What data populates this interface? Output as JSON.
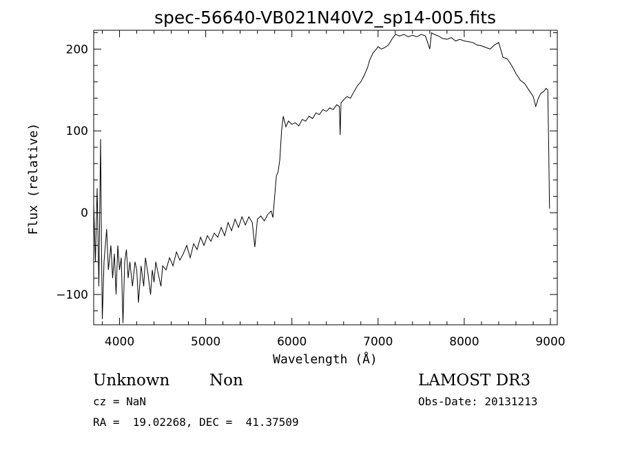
{
  "chart_data": {
    "type": "line",
    "title": "spec-56640-VB021N40V2_sp14-005.fits",
    "xlabel": "Wavelength (Å)",
    "ylabel": "Flux (relative)",
    "xlim": [
      3700,
      9080
    ],
    "ylim": [
      -137,
      223
    ],
    "x_ticks": [
      4000,
      5000,
      6000,
      7000,
      8000,
      9000
    ],
    "y_ticks": [
      -100,
      0,
      100,
      200
    ],
    "grid": false,
    "series": [
      {
        "points": [
          [
            3700,
            10
          ],
          [
            3720,
            -60
          ],
          [
            3740,
            30
          ],
          [
            3760,
            -90
          ],
          [
            3780,
            90
          ],
          [
            3790,
            -40
          ],
          [
            3800,
            -130
          ],
          [
            3820,
            -60
          ],
          [
            3850,
            -20
          ],
          [
            3870,
            -70
          ],
          [
            3900,
            -40
          ],
          [
            3920,
            -80
          ],
          [
            3940,
            -50
          ],
          [
            3960,
            -100
          ],
          [
            3980,
            -40
          ],
          [
            4000,
            -70
          ],
          [
            4020,
            -55
          ],
          [
            4040,
            -135
          ],
          [
            4060,
            -60
          ],
          [
            4080,
            -45
          ],
          [
            4100,
            -80
          ],
          [
            4120,
            -60
          ],
          [
            4150,
            -90
          ],
          [
            4180,
            -60
          ],
          [
            4200,
            -70
          ],
          [
            4220,
            -110
          ],
          [
            4250,
            -65
          ],
          [
            4280,
            -90
          ],
          [
            4300,
            -55
          ],
          [
            4330,
            -75
          ],
          [
            4360,
            -100
          ],
          [
            4380,
            -70
          ],
          [
            4400,
            -85
          ],
          [
            4420,
            -60
          ],
          [
            4450,
            -75
          ],
          [
            4480,
            -90
          ],
          [
            4500,
            -65
          ],
          [
            4540,
            -70
          ],
          [
            4580,
            -55
          ],
          [
            4620,
            -65
          ],
          [
            4660,
            -48
          ],
          [
            4700,
            -58
          ],
          [
            4740,
            -50
          ],
          [
            4780,
            -40
          ],
          [
            4820,
            -55
          ],
          [
            4860,
            -38
          ],
          [
            4900,
            -45
          ],
          [
            4940,
            -30
          ],
          [
            4980,
            -40
          ],
          [
            5020,
            -28
          ],
          [
            5060,
            -35
          ],
          [
            5100,
            -25
          ],
          [
            5140,
            -30
          ],
          [
            5180,
            -18
          ],
          [
            5220,
            -28
          ],
          [
            5260,
            -12
          ],
          [
            5300,
            -22
          ],
          [
            5340,
            -8
          ],
          [
            5380,
            -18
          ],
          [
            5420,
            -5
          ],
          [
            5460,
            -15
          ],
          [
            5500,
            -5
          ],
          [
            5540,
            -12
          ],
          [
            5570,
            -42
          ],
          [
            5600,
            -8
          ],
          [
            5640,
            -4
          ],
          [
            5680,
            -10
          ],
          [
            5720,
            -2
          ],
          [
            5760,
            2
          ],
          [
            5780,
            -6
          ],
          [
            5800,
            20
          ],
          [
            5820,
            45
          ],
          [
            5840,
            50
          ],
          [
            5860,
            65
          ],
          [
            5880,
            100
          ],
          [
            5900,
            118
          ],
          [
            5930,
            105
          ],
          [
            5960,
            112
          ],
          [
            6000,
            108
          ],
          [
            6040,
            110
          ],
          [
            6080,
            106
          ],
          [
            6120,
            114
          ],
          [
            6160,
            112
          ],
          [
            6200,
            118
          ],
          [
            6240,
            115
          ],
          [
            6280,
            122
          ],
          [
            6320,
            120
          ],
          [
            6360,
            126
          ],
          [
            6400,
            124
          ],
          [
            6440,
            128
          ],
          [
            6480,
            126
          ],
          [
            6520,
            132
          ],
          [
            6550,
            130
          ],
          [
            6560,
            95
          ],
          [
            6570,
            134
          ],
          [
            6600,
            138
          ],
          [
            6640,
            142
          ],
          [
            6680,
            140
          ],
          [
            6720,
            148
          ],
          [
            6760,
            155
          ],
          [
            6800,
            160
          ],
          [
            6840,
            168
          ],
          [
            6880,
            178
          ],
          [
            6900,
            186
          ],
          [
            6940,
            195
          ],
          [
            6980,
            200
          ],
          [
            7000,
            203
          ],
          [
            7040,
            200
          ],
          [
            7080,
            202
          ],
          [
            7120,
            205
          ],
          [
            7160,
            212
          ],
          [
            7200,
            218
          ],
          [
            7250,
            216
          ],
          [
            7300,
            218
          ],
          [
            7350,
            215
          ],
          [
            7400,
            217
          ],
          [
            7450,
            215
          ],
          [
            7500,
            218
          ],
          [
            7550,
            216
          ],
          [
            7600,
            200
          ],
          [
            7620,
            220
          ],
          [
            7650,
            218
          ],
          [
            7700,
            216
          ],
          [
            7750,
            213
          ],
          [
            7800,
            212
          ],
          [
            7850,
            214
          ],
          [
            7900,
            210
          ],
          [
            7950,
            212
          ],
          [
            8000,
            210
          ],
          [
            8050,
            209
          ],
          [
            8100,
            208
          ],
          [
            8150,
            205
          ],
          [
            8200,
            204
          ],
          [
            8250,
            202
          ],
          [
            8300,
            200
          ],
          [
            8350,
            205
          ],
          [
            8400,
            208
          ],
          [
            8450,
            190
          ],
          [
            8500,
            188
          ],
          [
            8550,
            180
          ],
          [
            8600,
            170
          ],
          [
            8650,
            162
          ],
          [
            8700,
            158
          ],
          [
            8750,
            150
          ],
          [
            8800,
            142
          ],
          [
            8830,
            130
          ],
          [
            8860,
            140
          ],
          [
            8890,
            146
          ],
          [
            8920,
            148
          ],
          [
            8950,
            152
          ],
          [
            8970,
            150
          ],
          [
            8980,
            80
          ],
          [
            8990,
            5
          ]
        ]
      }
    ]
  },
  "footer": {
    "class_label": "Unknown",
    "subclass_label": "Non",
    "survey_label": "LAMOST DR3",
    "redshift_text": "cz = NaN",
    "obsdate_text": "Obs-Date: 20131213",
    "coords_text": "RA =  19.02268, DEC =  41.37509"
  }
}
